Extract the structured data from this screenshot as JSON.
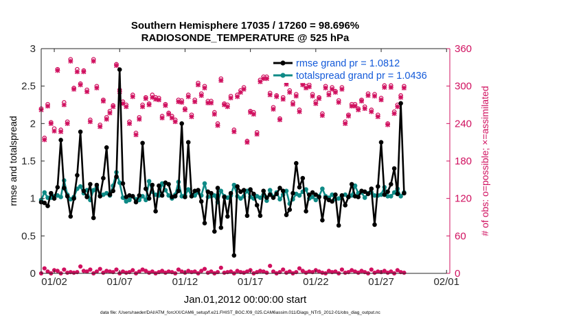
{
  "colors": {
    "rmse": "#000000",
    "spread": "#0e8a86",
    "obs": "#d0105f",
    "legend_text": "#1259d9"
  },
  "chart_data": {
    "type": "line",
    "title": "Southern Hemisphere 17035 / 17260 = 98.696%",
    "subtitle": "RADIOSONDE_TEMPERATURE @ 525 hPa",
    "xlabel": "Jan.01,2012 00:00:00 start",
    "ylabel_left": "rmse and totalspread",
    "ylabel_right": "# of obs: o=possible; ×=assimilated",
    "footnote": "data file: /Users/raeder/DAI/ATM_forcXX/CAM6_setup/f.e21.FHIST_BGC.f09_025.CAM6assim.011/Diags_NTrS_2012-01/obs_diag_output.nc",
    "x_range_days": [
      0,
      31.25
    ],
    "ylim_left": [
      0,
      3
    ],
    "ylim_right": [
      0,
      360
    ],
    "x_ticks": [
      {
        "day": 1,
        "label": "01/02"
      },
      {
        "day": 6,
        "label": "01/07"
      },
      {
        "day": 11,
        "label": "01/12"
      },
      {
        "day": 16,
        "label": "01/17"
      },
      {
        "day": 21,
        "label": "01/22"
      },
      {
        "day": 26,
        "label": "01/27"
      },
      {
        "day": 31,
        "label": "02/01"
      }
    ],
    "y_ticks_left": [
      "0",
      "0.5",
      "1",
      "1.5",
      "2",
      "2.5",
      "3"
    ],
    "y_ticks_right": [
      "0",
      "60",
      "120",
      "180",
      "240",
      "300",
      "360"
    ],
    "legend": [
      {
        "label": "rmse grand pr = 1.0812"
      },
      {
        "label": "totalspread grand pr = 1.0436"
      }
    ],
    "time_step_days": 0.25,
    "series": [
      {
        "name": "rmse",
        "values": [
          0.95,
          0.94,
          0.9,
          1.07,
          1.0,
          1.15,
          1.78,
          1.14,
          1.03,
          0.76,
          1.0,
          1.31,
          1.89,
          1.1,
          1.02,
          1.19,
          0.74,
          1.18,
          1.03,
          1.27,
          1.68,
          1.05,
          1.1,
          1.29,
          2.72,
          1.2,
          1.02,
          1.04,
          1.03,
          0.95,
          1.04,
          1.74,
          1.13,
          1.0,
          1.18,
          0.83,
          1.17,
          1.04,
          1.21,
          1.19,
          1.02,
          1.03,
          1.1,
          2.0,
          1.02,
          1.75,
          1.03,
          1.1,
          1.11,
          0.96,
          0.67,
          1.09,
          1.07,
          0.56,
          1.14,
          0.61,
          1.02,
          0.76,
          1.07,
          0.24,
          1.16,
          1.09,
          1.11,
          0.77,
          1.12,
          1.06,
          0.91,
          0.77,
          1.1,
          1.01,
          1.05,
          1.01,
          1.06,
          1.14,
          1.1,
          0.78,
          0.85,
          1.07,
          1.47,
          1.15,
          1.27,
          0.83,
          1.05,
          1.08,
          1.05,
          1.02,
          0.71,
          1.01,
          0.98,
          0.96,
          1.05,
          0.64,
          1.04,
          0.91,
          1.02,
          1.19,
          1.03,
          1.02,
          1.1,
          1.09,
          1.06,
          1.13,
          0.65,
          1.16,
          1.75,
          1.05,
          1.09,
          1.19,
          1.4,
          1.06,
          2.27,
          1.07
        ]
      },
      {
        "name": "totalspread",
        "values": [
          0.98,
          1.08,
          1.01,
          1.01,
          1.03,
          1.04,
          1.02,
          1.24,
          1.05,
          0.99,
          1.02,
          1.13,
          1.16,
          1.07,
          1.11,
          0.98,
          1.11,
          1.15,
          1.04,
          1.05,
          1.07,
          1.04,
          1.17,
          1.35,
          1.21,
          1.01,
          0.96,
          0.98,
          1.03,
          0.99,
          0.98,
          1.03,
          0.98,
          1.23,
          1.09,
          1.05,
          1.04,
          1.2,
          1.11,
          1.04,
          1.0,
          1.05,
          1.22,
          1.03,
          1.04,
          1.12,
          1.03,
          1.04,
          1.08,
          1.04,
          1.2,
          1.02,
          1.03,
          1.04,
          0.95,
          1.1,
          1.03,
          1.01,
          1.04,
          1.18,
          1.03,
          1.0,
          1.03,
          1.1,
          1.02,
          1.0,
          1.03,
          1.01,
          1.05,
          0.97,
          1.11,
          1.02,
          1.08,
          0.99,
          1.05,
          1.1,
          0.93,
          0.99,
          1.06,
          1.04,
          1.09,
          1.12,
          1.0,
          1.02,
          0.98,
          1.03,
          1.13,
          1.03,
          1.01,
          1.05,
          0.99,
          1.0,
          1.04,
          1.05,
          1.02,
          1.04,
          1.17,
          1.07,
          1.08,
          1.01,
          1.07,
          1.08,
          1.04,
          1.04,
          1.05,
          1.15,
          1.03,
          1.03,
          1.08,
          1.13,
          1.03,
          1.08
        ]
      },
      {
        "name": "obs_possible",
        "values": [
          264,
          217,
          271,
          242,
          232,
          327,
          230,
          274,
          243,
          343,
          297,
          327,
          304,
          325,
          294,
          246,
          343,
          300,
          238,
          278,
          250,
          260,
          269,
          335,
          294,
          275,
          270,
          243,
          286,
          225,
          250,
          270,
          282,
          272,
          286,
          282,
          281,
          252,
          271,
          257,
          252,
          246,
          278,
          277,
          264,
          286,
          254,
          278,
          305,
          288,
          300,
          276,
          276,
          258,
          240,
          312,
          272,
          270,
          284,
          230,
          286,
          293,
          298,
          212,
          260,
          258,
          226,
          310,
          315,
          315,
          289,
          266,
          285,
          248,
          282,
          306,
          293,
          274,
          287,
          262,
          304,
          300,
          302,
          287,
          275,
          282,
          256,
          300,
          289,
          298,
          292,
          277,
          298,
          243,
          254,
          271,
          271,
          264,
          278,
          267,
          288,
          262,
          287,
          254,
          281,
          301,
          240,
          301,
          259,
          270,
          285,
          300
        ]
      },
      {
        "name": "obs_assimilated",
        "values": [
          262,
          214,
          268,
          240,
          228,
          325,
          227,
          270,
          240,
          340,
          295,
          323,
          302,
          323,
          291,
          243,
          340,
          297,
          235,
          276,
          247,
          257,
          267,
          333,
          291,
          272,
          267,
          240,
          283,
          222,
          247,
          267,
          280,
          270,
          282,
          279,
          278,
          249,
          269,
          255,
          249,
          243,
          275,
          274,
          262,
          283,
          251,
          275,
          302,
          285,
          297,
          273,
          273,
          255,
          237,
          309,
          270,
          267,
          281,
          227,
          283,
          290,
          295,
          210,
          258,
          255,
          223,
          307,
          312,
          312,
          286,
          263,
          283,
          246,
          279,
          303,
          290,
          271,
          284,
          259,
          302,
          297,
          299,
          284,
          272,
          280,
          253,
          297,
          286,
          295,
          290,
          274,
          295,
          240,
          252,
          268,
          268,
          262,
          276,
          264,
          285,
          259,
          284,
          251,
          278,
          298,
          238,
          298,
          256,
          267,
          282,
          297
        ]
      },
      {
        "name": "obs_rejected",
        "values": [
          0,
          8,
          3,
          0,
          5,
          4,
          0,
          6,
          1,
          2,
          1,
          2,
          11,
          4,
          3,
          6,
          0,
          3,
          7,
          1,
          4,
          3,
          2,
          6,
          0,
          3,
          1,
          2,
          5,
          0,
          3,
          6,
          4,
          1,
          3,
          0,
          2,
          4,
          1,
          3,
          2,
          0,
          6,
          3,
          1,
          4,
          2,
          3,
          0,
          4,
          7,
          1,
          3,
          0,
          2,
          9,
          1,
          2,
          3,
          0,
          4,
          2,
          1,
          3,
          5,
          0,
          2,
          4,
          3,
          1,
          12,
          3,
          0,
          2,
          6,
          1,
          3,
          0,
          2,
          8,
          4,
          1,
          3,
          2,
          5,
          3,
          1,
          0,
          4,
          2,
          3,
          0,
          6,
          1,
          2,
          5,
          3,
          1,
          4,
          2,
          0,
          6,
          1,
          3,
          2,
          4,
          1,
          3,
          0,
          5,
          2,
          1
        ]
      }
    ]
  }
}
